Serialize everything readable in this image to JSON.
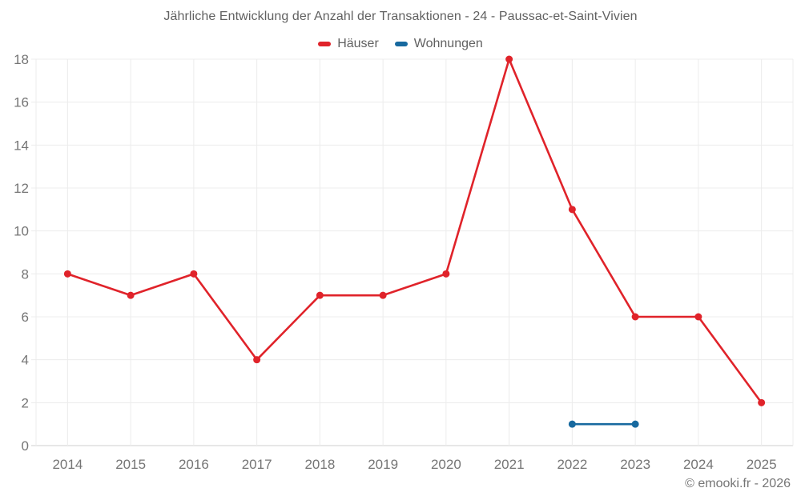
{
  "title": "Jährliche Entwicklung der Anzahl der Transaktionen - 24 - Paussac-et-Saint-Vivien",
  "copyright": "© emooki.fr - 2026",
  "colors": {
    "background": "#ffffff",
    "grid": "#ececec",
    "axis": "#cfcfcf",
    "text_title": "#616161",
    "text_axis": "#757575",
    "series_hauser": "#e0232a",
    "series_wohnungen": "#17699f"
  },
  "chart_data": {
    "type": "line",
    "title": "Jährliche Entwicklung der Anzahl der Transaktionen - 24 - Paussac-et-Saint-Vivien",
    "categories": [
      "2014",
      "2015",
      "2016",
      "2017",
      "2018",
      "2019",
      "2020",
      "2021",
      "2022",
      "2023",
      "2024",
      "2025"
    ],
    "series": [
      {
        "name": "Häuser",
        "color": "#e0232a",
        "values": [
          8,
          7,
          8,
          4,
          7,
          7,
          8,
          18,
          11,
          6,
          6,
          2
        ]
      },
      {
        "name": "Wohnungen",
        "color": "#17699f",
        "values": [
          null,
          null,
          null,
          null,
          null,
          null,
          null,
          null,
          1,
          1,
          null,
          null
        ]
      }
    ],
    "xlabel": "",
    "ylabel": "",
    "ylim": [
      0,
      18
    ],
    "yticks": [
      0,
      2,
      4,
      6,
      8,
      10,
      12,
      14,
      16,
      18
    ],
    "grid": true,
    "legend_position": "top"
  }
}
